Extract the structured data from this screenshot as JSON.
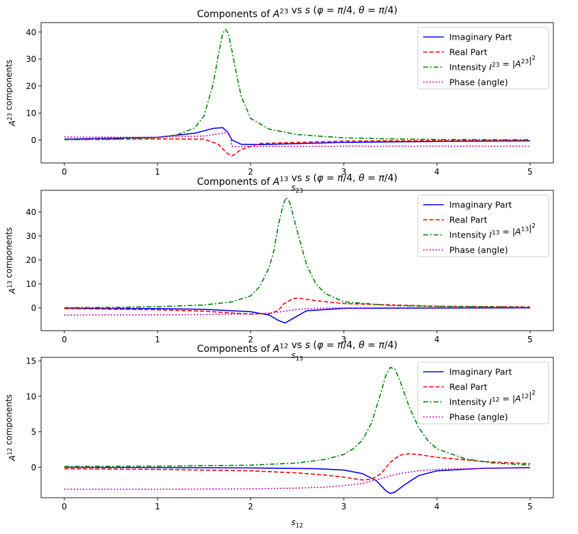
{
  "chart_data": [
    {
      "type": "line",
      "title": "Components of A^23 vs s (φ = π/4, θ = π/4)",
      "xlabel": "s23",
      "ylabel": "A^23 components",
      "xlim": [
        -0.25,
        5.25
      ],
      "ylim": [
        -8.5,
        43.5
      ],
      "xticks": [
        0,
        1,
        2,
        3,
        4,
        5
      ],
      "yticks": [
        0,
        10,
        20,
        30,
        40
      ],
      "grid": false,
      "legend_position": "top-right",
      "series": [
        {
          "name": "Imaginary Part",
          "color": "#0000ff",
          "dash": "solid",
          "x": [
            0,
            1.0,
            1.4,
            1.6,
            1.7,
            1.75,
            1.8,
            1.9,
            2.1,
            3,
            4,
            5
          ],
          "y": [
            0.3,
            1.0,
            2.5,
            4.3,
            4.6,
            3.0,
            0.0,
            -1.6,
            -1.7,
            -0.9,
            -0.5,
            -0.3
          ]
        },
        {
          "name": "Real Part",
          "color": "#ff0000",
          "dash": "dashed",
          "x": [
            0,
            1.0,
            1.5,
            1.65,
            1.75,
            1.8,
            1.9,
            2.1,
            3,
            4,
            5
          ],
          "y": [
            0.2,
            0.4,
            0.3,
            -1.5,
            -5.0,
            -5.9,
            -3.5,
            -1.3,
            -0.4,
            -0.2,
            -0.1
          ]
        },
        {
          "name": "Intensity I^23 = |A^23|^2",
          "color": "#008000",
          "dash": "dashdot",
          "x": [
            0,
            0.5,
            1.0,
            1.2,
            1.4,
            1.5,
            1.6,
            1.65,
            1.7,
            1.73,
            1.76,
            1.8,
            1.85,
            1.9,
            2.0,
            2.2,
            2.5,
            3.0,
            3.5,
            4.0,
            5.0
          ],
          "y": [
            0.1,
            0.2,
            0.9,
            1.8,
            4.5,
            9,
            21,
            31,
            39.5,
            41,
            39.5,
            33,
            24,
            16,
            8,
            4,
            2,
            0.8,
            0.4,
            0.2,
            0.1
          ]
        },
        {
          "name": "Phase (angle)",
          "color": "#bf00bf",
          "dash": "dotted",
          "x": [
            0,
            1.0,
            1.5,
            1.7,
            1.75,
            1.78,
            1.8,
            1.85,
            2.0,
            3,
            4,
            5
          ],
          "y": [
            1.1,
            1.0,
            1.5,
            2.5,
            3.0,
            1.5,
            -2.3,
            -2.5,
            -2.4,
            -2.3,
            -2.3,
            -2.3
          ]
        }
      ]
    },
    {
      "type": "line",
      "title": "Components of A^13 vs s (φ = π/4, θ = π/4)",
      "xlabel": "s13",
      "ylabel": "A^13 components",
      "xlim": [
        -0.25,
        5.25
      ],
      "ylim": [
        -9.5,
        49
      ],
      "xticks": [
        0,
        1,
        2,
        3,
        4,
        5
      ],
      "yticks": [
        0,
        10,
        20,
        30,
        40
      ],
      "grid": false,
      "legend_position": "top-right",
      "series": [
        {
          "name": "Imaginary Part",
          "color": "#0000ff",
          "dash": "solid",
          "x": [
            0,
            1.0,
            1.5,
            2.0,
            2.2,
            2.3,
            2.37,
            2.45,
            2.6,
            3.0,
            4,
            5
          ],
          "y": [
            -0.1,
            -0.3,
            -0.6,
            -1.6,
            -3.0,
            -5.3,
            -6.3,
            -4.5,
            -1.2,
            -0.2,
            -0.05,
            0
          ]
        },
        {
          "name": "Real Part",
          "color": "#ff0000",
          "dash": "dashed",
          "x": [
            0,
            1.0,
            1.5,
            2.0,
            2.2,
            2.3,
            2.35,
            2.45,
            2.5,
            2.7,
            3.0,
            4,
            5
          ],
          "y": [
            -0.3,
            -0.8,
            -1.4,
            -2.6,
            -2.4,
            -1.0,
            1.5,
            3.8,
            4.1,
            3.0,
            1.8,
            0.7,
            0.4
          ]
        },
        {
          "name": "Intensity I^13 = |A^13|^2",
          "color": "#008000",
          "dash": "dashdot",
          "x": [
            0,
            0.5,
            1.0,
            1.5,
            1.8,
            2.0,
            2.1,
            2.2,
            2.25,
            2.3,
            2.35,
            2.38,
            2.42,
            2.5,
            2.6,
            2.7,
            2.8,
            3.0,
            3.5,
            4.0,
            5.0
          ],
          "y": [
            0.1,
            0.2,
            0.5,
            1.2,
            2.5,
            5,
            9,
            17,
            24,
            35,
            43,
            46,
            44,
            32,
            18,
            10,
            6,
            2.5,
            1.0,
            0.6,
            0.3
          ]
        },
        {
          "name": "Phase (angle)",
          "color": "#bf00bf",
          "dash": "dotted",
          "x": [
            0,
            1.0,
            1.5,
            2.0,
            2.2,
            2.35,
            2.5,
            2.7,
            3.0,
            4,
            5
          ],
          "y": [
            -3.0,
            -2.9,
            -2.8,
            -2.5,
            -2.2,
            -1.5,
            -0.6,
            -0.2,
            0,
            0.1,
            0.1
          ]
        }
      ]
    },
    {
      "type": "line",
      "title": "Components of A^12 vs s (φ = π/4, θ = π/4)",
      "xlabel": "s12",
      "ylabel": "A^12 components",
      "xlim": [
        -0.25,
        5.25
      ],
      "ylim": [
        -4.3,
        15.5
      ],
      "xticks": [
        0,
        1,
        2,
        3,
        4,
        5
      ],
      "yticks": [
        0,
        5,
        10,
        15
      ],
      "grid": false,
      "legend_position": "top-right",
      "series": [
        {
          "name": "Imaginary Part",
          "color": "#0000ff",
          "dash": "solid",
          "x": [
            0,
            1,
            2,
            2.7,
            3.0,
            3.2,
            3.35,
            3.45,
            3.5,
            3.55,
            3.65,
            3.8,
            4.0,
            4.5,
            5
          ],
          "y": [
            0,
            -0.05,
            -0.1,
            -0.2,
            -0.4,
            -0.9,
            -1.9,
            -3.3,
            -3.7,
            -3.5,
            -2.5,
            -1.2,
            -0.5,
            -0.15,
            -0.05
          ]
        },
        {
          "name": "Real Part",
          "color": "#ff0000",
          "dash": "dashed",
          "x": [
            0,
            1,
            2,
            2.5,
            2.8,
            3.0,
            3.2,
            3.3,
            3.4,
            3.5,
            3.6,
            3.7,
            3.8,
            4.0,
            4.5,
            5
          ],
          "y": [
            -0.2,
            -0.3,
            -0.5,
            -0.8,
            -1.1,
            -1.4,
            -1.8,
            -1.7,
            -0.9,
            0.7,
            1.7,
            1.9,
            1.8,
            1.4,
            0.8,
            0.5
          ]
        },
        {
          "name": "Intensity I^12 = |A^12|^2",
          "color": "#008000",
          "dash": "dashdot",
          "x": [
            0,
            1,
            2,
            2.5,
            2.8,
            3.0,
            3.1,
            3.2,
            3.3,
            3.4,
            3.45,
            3.5,
            3.55,
            3.6,
            3.7,
            3.8,
            3.9,
            4.0,
            4.3,
            4.6,
            5.0
          ],
          "y": [
            0.1,
            0.15,
            0.3,
            0.6,
            1.1,
            1.8,
            2.6,
            3.8,
            6.3,
            10.6,
            12.9,
            14.1,
            13.8,
            12.3,
            8.6,
            5.7,
            3.8,
            2.6,
            1.2,
            0.6,
            0.3
          ]
        },
        {
          "name": "Phase (angle)",
          "color": "#bf00bf",
          "dash": "dotted",
          "x": [
            0,
            1,
            2,
            2.5,
            2.8,
            3.0,
            3.2,
            3.4,
            3.5,
            3.6,
            3.8,
            4.0,
            4.5,
            5
          ],
          "y": [
            -3.1,
            -3.1,
            -3.05,
            -2.95,
            -2.8,
            -2.6,
            -2.3,
            -1.6,
            -1.2,
            -0.9,
            -0.5,
            -0.3,
            -0.15,
            -0.1
          ]
        }
      ]
    }
  ]
}
